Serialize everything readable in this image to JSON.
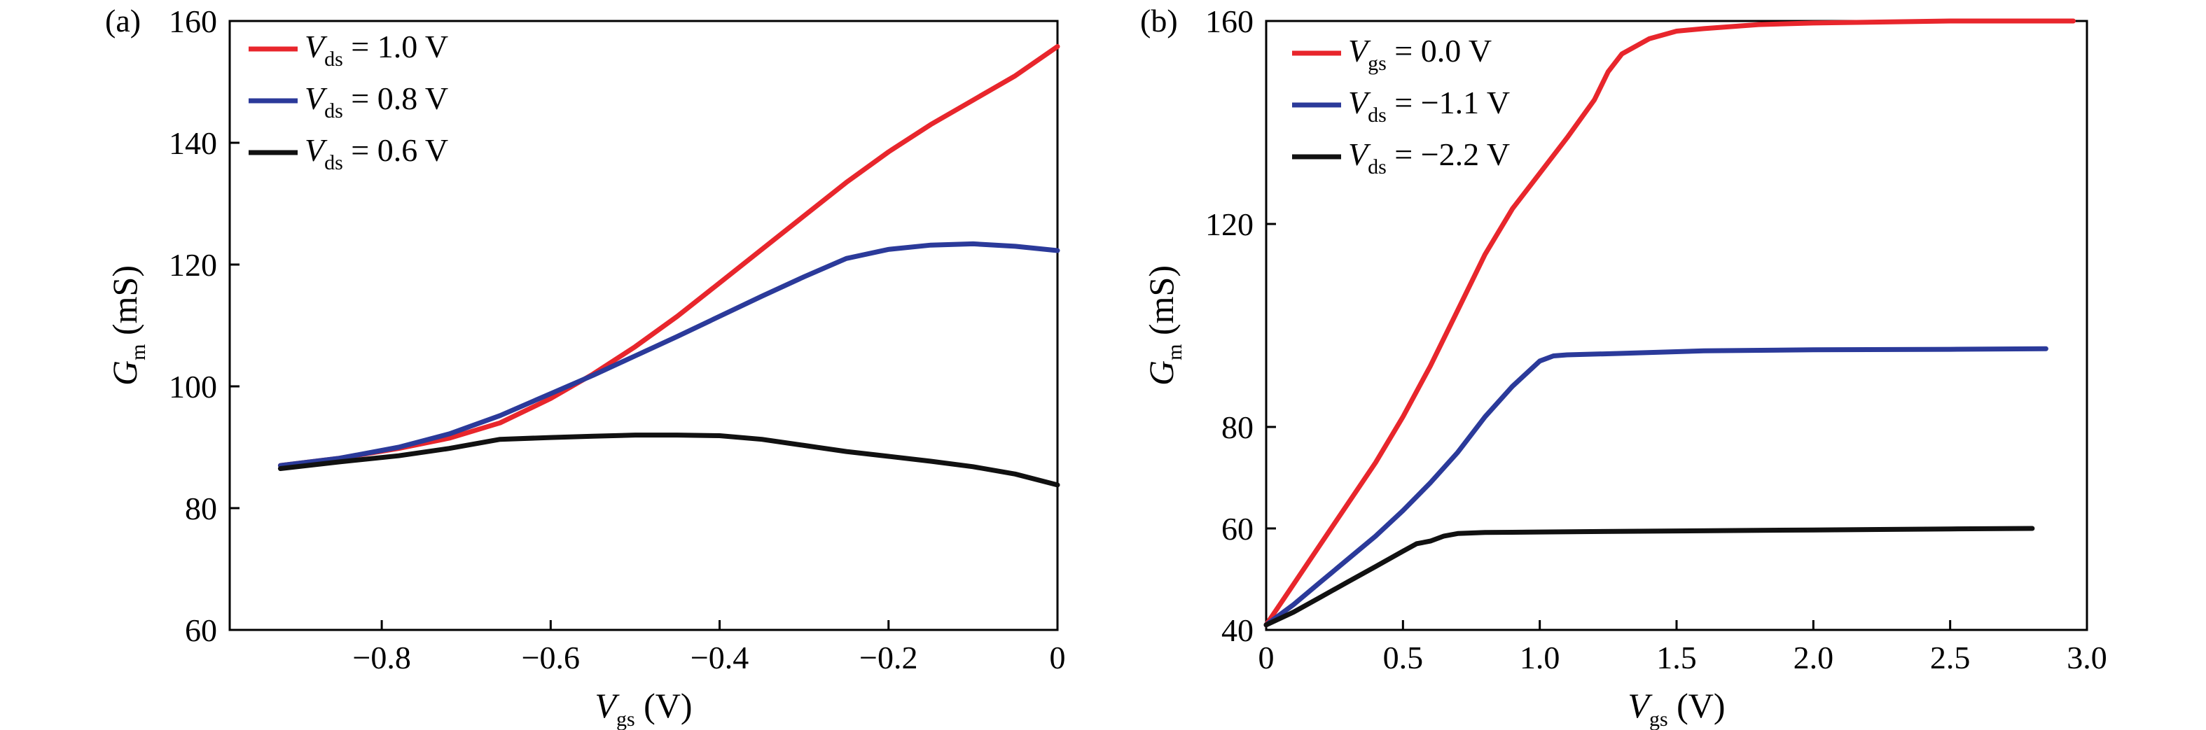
{
  "chart_data": [
    {
      "panel": "(a)",
      "type": "line",
      "xlabel": {
        "main": "V",
        "sub": "gs",
        "unit": " (V)"
      },
      "ylabel": {
        "main": "G",
        "sub": "m",
        "unit": " (mS)"
      },
      "xlim": [
        -0.98,
        0.0
      ],
      "ylim": [
        60,
        160
      ],
      "xticks": [
        -0.8,
        -0.6,
        -0.4,
        -0.2,
        0
      ],
      "xtick_labels": [
        "−0.8",
        "−0.6",
        "−0.4",
        "−0.2",
        "0"
      ],
      "yticks": [
        60,
        80,
        100,
        120,
        140,
        160
      ],
      "ytick_labels": [
        "60",
        "80",
        "100",
        "120",
        "140",
        "160"
      ],
      "grid": false,
      "legend_position": "top-left",
      "series": [
        {
          "name": "Vds = 1.0 V",
          "legend": {
            "main": "V",
            "sub": "ds",
            "rest": " = 1.0 V"
          },
          "color": "#e8262c",
          "points": [
            [
              -0.92,
              87
            ],
            [
              -0.85,
              88.2
            ],
            [
              -0.78,
              89.8
            ],
            [
              -0.72,
              91.5
            ],
            [
              -0.66,
              94
            ],
            [
              -0.6,
              98
            ],
            [
              -0.55,
              102
            ],
            [
              -0.5,
              106.5
            ],
            [
              -0.45,
              111.5
            ],
            [
              -0.4,
              117
            ],
            [
              -0.35,
              122.5
            ],
            [
              -0.3,
              128
            ],
            [
              -0.25,
              133.5
            ],
            [
              -0.2,
              138.5
            ],
            [
              -0.15,
              143
            ],
            [
              -0.1,
              147
            ],
            [
              -0.05,
              151
            ],
            [
              0,
              155.8
            ]
          ]
        },
        {
          "name": "Vds = 0.8 V",
          "legend": {
            "main": "V",
            "sub": "ds",
            "rest": " = 0.8 V"
          },
          "color": "#2b3a9a",
          "points": [
            [
              -0.92,
              87
            ],
            [
              -0.85,
              88.2
            ],
            [
              -0.78,
              90
            ],
            [
              -0.72,
              92.2
            ],
            [
              -0.66,
              95.2
            ],
            [
              -0.6,
              98.8
            ],
            [
              -0.55,
              101.8
            ],
            [
              -0.5,
              105
            ],
            [
              -0.45,
              108.2
            ],
            [
              -0.4,
              111.5
            ],
            [
              -0.35,
              114.8
            ],
            [
              -0.3,
              118
            ],
            [
              -0.25,
              121
            ],
            [
              -0.2,
              122.5
            ],
            [
              -0.15,
              123.2
            ],
            [
              -0.1,
              123.4
            ],
            [
              -0.05,
              123
            ],
            [
              0,
              122.3
            ]
          ]
        },
        {
          "name": "Vds = 0.6 V",
          "legend": {
            "main": "V",
            "sub": "ds",
            "rest": " = 0.6 V"
          },
          "color": "#111111",
          "points": [
            [
              -0.92,
              86.5
            ],
            [
              -0.85,
              87.6
            ],
            [
              -0.78,
              88.6
            ],
            [
              -0.72,
              89.8
            ],
            [
              -0.66,
              91.3
            ],
            [
              -0.6,
              91.6
            ],
            [
              -0.55,
              91.8
            ],
            [
              -0.5,
              92
            ],
            [
              -0.45,
              92
            ],
            [
              -0.4,
              91.9
            ],
            [
              -0.35,
              91.3
            ],
            [
              -0.3,
              90.3
            ],
            [
              -0.25,
              89.3
            ],
            [
              -0.2,
              88.5
            ],
            [
              -0.15,
              87.7
            ],
            [
              -0.1,
              86.8
            ],
            [
              -0.05,
              85.6
            ],
            [
              0,
              83.8
            ]
          ]
        }
      ]
    },
    {
      "panel": "(b)",
      "type": "line",
      "xlabel": {
        "main": "V",
        "sub": "gs",
        "unit": " (V)"
      },
      "ylabel": {
        "main": "G",
        "sub": "m",
        "unit": " (mS)"
      },
      "xlim": [
        0,
        3.0
      ],
      "ylim": [
        40,
        160
      ],
      "xticks": [
        0,
        0.5,
        1.0,
        1.5,
        2.0,
        2.5,
        3.0
      ],
      "xtick_labels": [
        "0",
        "0.5",
        "1.0",
        "1.5",
        "2.0",
        "2.5",
        "3.0"
      ],
      "yticks": [
        40,
        60,
        80,
        120,
        160
      ],
      "ytick_labels": [
        "40",
        "60",
        "80",
        "120",
        "160"
      ],
      "grid": false,
      "legend_position": "top-left",
      "series": [
        {
          "name": "Vgs = 0.0 V",
          "legend": {
            "main": "V",
            "sub": "gs",
            "rest": " = 0.0 V"
          },
          "color": "#e8262c",
          "points": [
            [
              0,
              41
            ],
            [
              0.1,
              49
            ],
            [
              0.2,
              57
            ],
            [
              0.3,
              65
            ],
            [
              0.4,
              73
            ],
            [
              0.5,
              82
            ],
            [
              0.6,
              92
            ],
            [
              0.7,
              103
            ],
            [
              0.8,
              114
            ],
            [
              0.9,
              123
            ],
            [
              1.0,
              130
            ],
            [
              1.1,
              137
            ],
            [
              1.2,
              144.5
            ],
            [
              1.25,
              150
            ],
            [
              1.3,
              153.5
            ],
            [
              1.4,
              156.5
            ],
            [
              1.5,
              158
            ],
            [
              1.6,
              158.5
            ],
            [
              1.8,
              159.3
            ],
            [
              2.0,
              159.6
            ],
            [
              2.5,
              160
            ],
            [
              2.95,
              160
            ]
          ]
        },
        {
          "name": "Vds = −1.1 V",
          "legend": {
            "main": "V",
            "sub": "ds",
            "rest": " = −1.1 V"
          },
          "color": "#2b3a9a",
          "points": [
            [
              0,
              41
            ],
            [
              0.1,
              45
            ],
            [
              0.2,
              49.5
            ],
            [
              0.3,
              54
            ],
            [
              0.4,
              58.5
            ],
            [
              0.5,
              63.5
            ],
            [
              0.6,
              69
            ],
            [
              0.7,
              75
            ],
            [
              0.8,
              82
            ],
            [
              0.9,
              88
            ],
            [
              1.0,
              93
            ],
            [
              1.05,
              94
            ],
            [
              1.1,
              94.2
            ],
            [
              1.3,
              94.5
            ],
            [
              1.6,
              95
            ],
            [
              2.0,
              95.2
            ],
            [
              2.5,
              95.3
            ],
            [
              2.85,
              95.4
            ]
          ]
        },
        {
          "name": "Vds = −2.2 V",
          "legend": {
            "main": "V",
            "sub": "ds",
            "rest": " = −2.2 V"
          },
          "color": "#111111",
          "points": [
            [
              0,
              41
            ],
            [
              0.1,
              43.5
            ],
            [
              0.2,
              46.5
            ],
            [
              0.3,
              49.5
            ],
            [
              0.4,
              52.5
            ],
            [
              0.5,
              55.5
            ],
            [
              0.55,
              57
            ],
            [
              0.6,
              57.5
            ],
            [
              0.65,
              58.5
            ],
            [
              0.7,
              59
            ],
            [
              0.8,
              59.2
            ],
            [
              1.0,
              59.3
            ],
            [
              1.5,
              59.5
            ],
            [
              2.0,
              59.7
            ],
            [
              2.5,
              59.9
            ],
            [
              2.8,
              60
            ]
          ]
        }
      ]
    }
  ]
}
